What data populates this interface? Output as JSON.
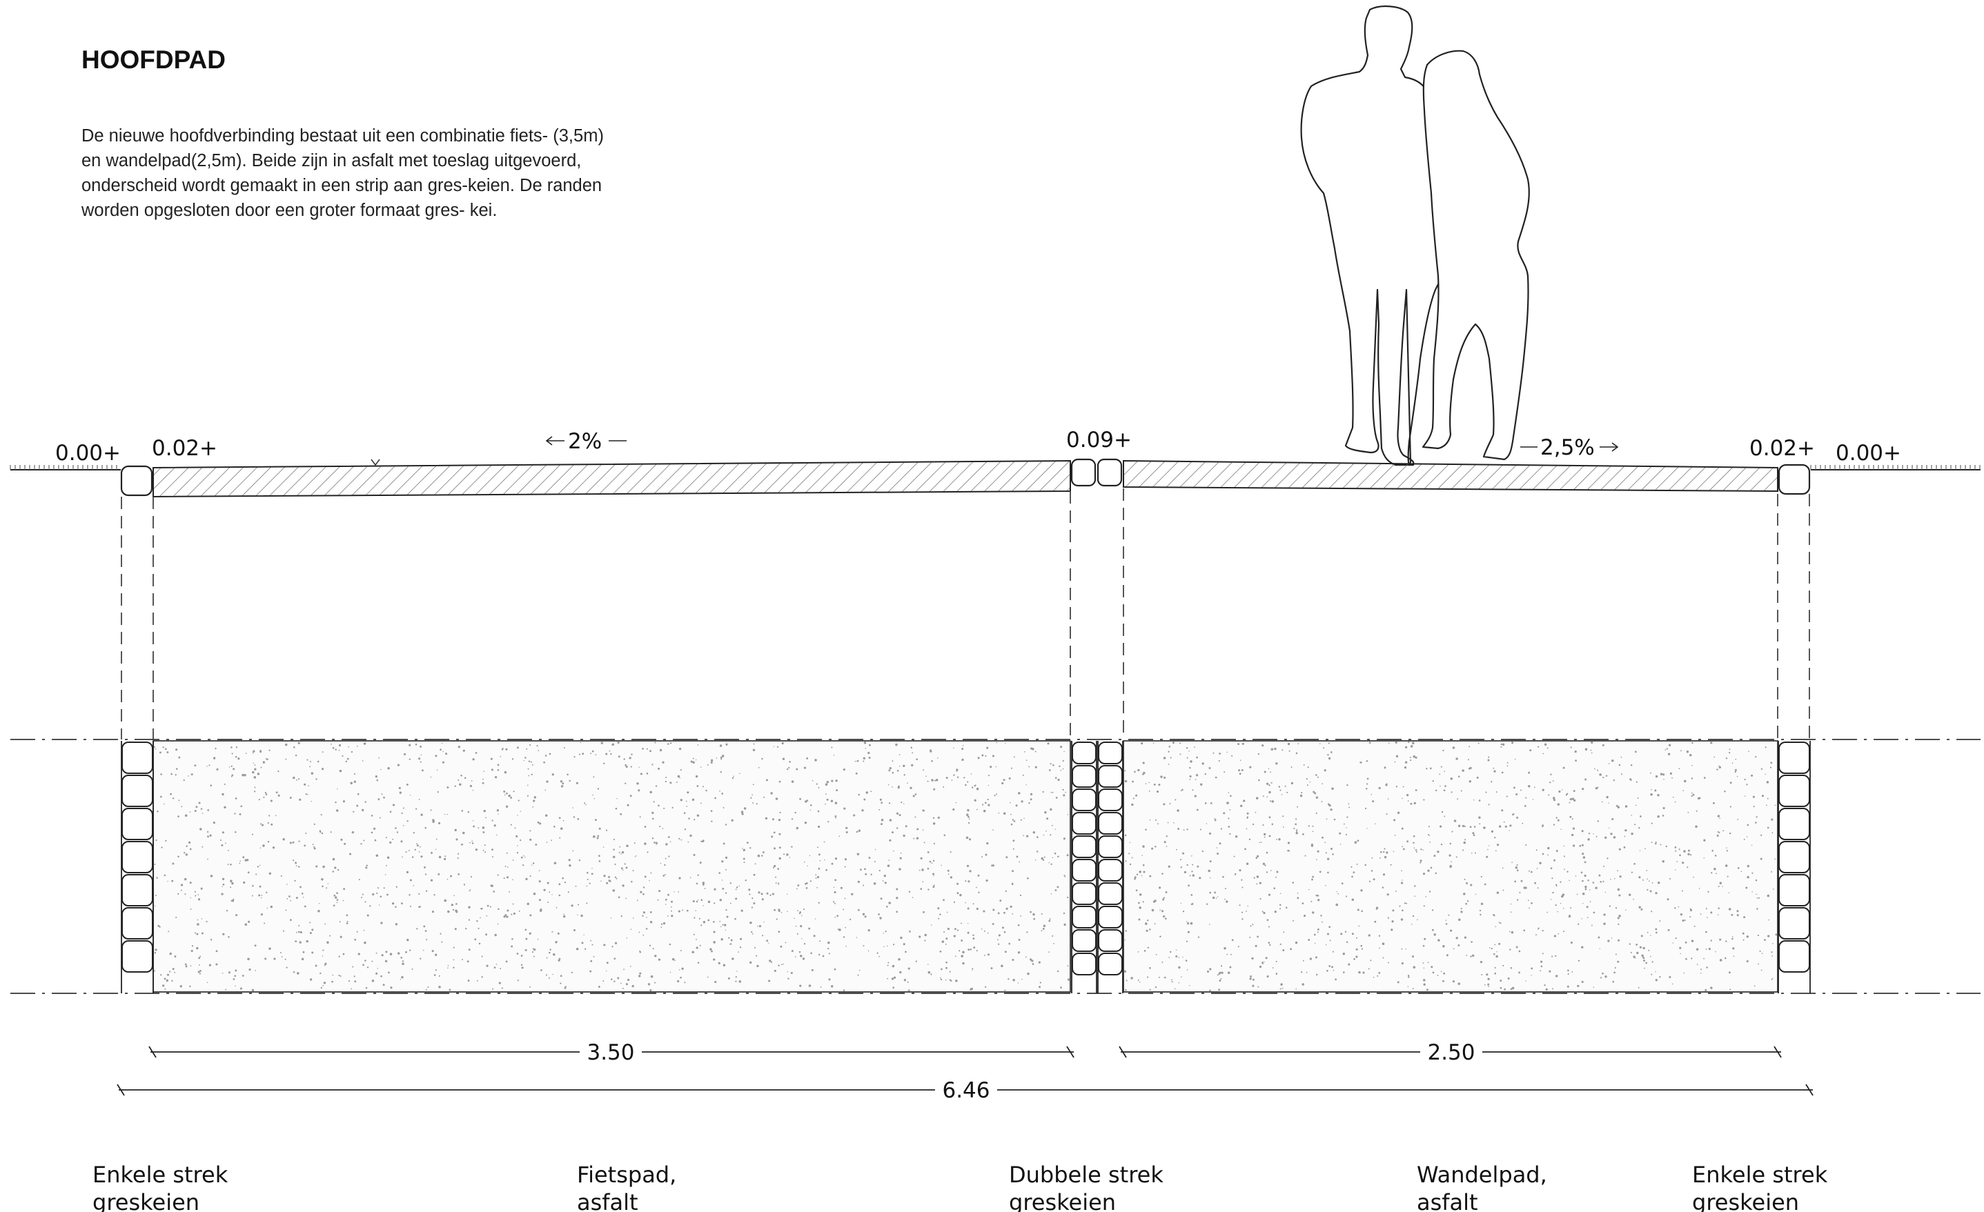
{
  "title": "HOOFDPAD",
  "description": [
    "De nieuwe hoofdverbinding bestaat uit een combinatie fiets- (3,5m)",
    "en wandelpad(2,5m). Beide zijn in asfalt met toeslag uitgevoerd,",
    "onderscheid wordt gemaakt in een strip aan gres-keien. De randen",
    "worden opgesloten door een groter formaat gres- kei."
  ],
  "levels": {
    "left_ground": "0.00+",
    "left_edge": "0.02+",
    "center": "0.09+",
    "right_edge": "0.02+",
    "right_ground": "0.00+"
  },
  "slopes": {
    "fietspad": "2%",
    "wandelpad": "2,5%"
  },
  "dimensions": {
    "fietspad_width": "3.50",
    "wandelpad_width": "2.50",
    "total_width": "6.46"
  },
  "captions": [
    {
      "line1": "Enkele strek",
      "line2": "greskeien"
    },
    {
      "line1": "Fietspad,",
      "line2": "asfalt"
    },
    {
      "line1": "Dubbele strek",
      "line2": "greskeien"
    },
    {
      "line1": "Wandelpad,",
      "line2": "asfalt"
    },
    {
      "line1": "Enkele strek",
      "line2": "greskeien"
    }
  ],
  "colors": {
    "line": "#222222",
    "hatch": "#777777",
    "speckle": "#9a9a9a",
    "stone_fill": "#ffffff"
  }
}
